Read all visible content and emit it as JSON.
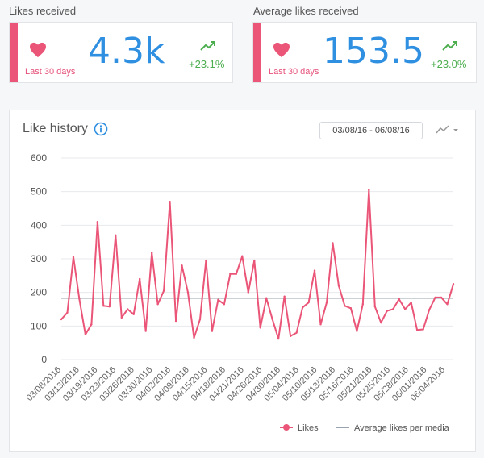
{
  "cards": [
    {
      "title": "Likes received",
      "value": "4.3k",
      "period": "Last 30 days",
      "change": "+23.1%"
    },
    {
      "title": "Average likes received",
      "value": "153.5",
      "period": "Last 30 days",
      "change": "+23.0%"
    }
  ],
  "chart_header": {
    "title": "Like history",
    "date_range": "03/08/16 - 06/08/16"
  },
  "icons": {
    "card_heart": "heart-icon",
    "trend": "trend-up-icon",
    "info": "info-icon",
    "chart_type": "line-chart-icon",
    "chart_type_menu": "chevron-down-icon"
  },
  "colors": {
    "likes": "#ea5578",
    "average": "#9aa3ad",
    "value_blue": "#2f8fe0",
    "trend_green": "#4cae4f"
  },
  "chart_data": {
    "type": "line",
    "title": "",
    "ylim": [
      0,
      600
    ],
    "yticks": [
      0,
      100,
      200,
      300,
      400,
      500,
      600
    ],
    "x_tick_labels": [
      "03/08/2016",
      "03/13/2016",
      "03/19/2016",
      "03/23/2016",
      "03/26/2016",
      "03/30/2016",
      "04/02/2016",
      "04/09/2016",
      "04/15/2016",
      "04/18/2016",
      "04/21/2016",
      "04/26/2016",
      "04/30/2016",
      "05/04/2016",
      "05/10/2016",
      "05/13/2016",
      "05/16/2016",
      "05/21/2016",
      "05/25/2016",
      "05/28/2016",
      "06/01/2016",
      "06/04/2016"
    ],
    "grid": "horizontal",
    "legend_position": "bottom-right",
    "series": [
      {
        "name": "Likes",
        "values": [
          120,
          140,
          305,
          180,
          75,
          105,
          410,
          160,
          158,
          370,
          125,
          150,
          135,
          240,
          85,
          318,
          165,
          205,
          470,
          115,
          280,
          200,
          65,
          120,
          295,
          85,
          178,
          165,
          255,
          255,
          308,
          200,
          295,
          95,
          183,
          120,
          62,
          188,
          70,
          80,
          155,
          170,
          265,
          105,
          170,
          347,
          220,
          160,
          153,
          85,
          165,
          505,
          158,
          110,
          145,
          150,
          180,
          150,
          170,
          88,
          90,
          148,
          185,
          185,
          165,
          225
        ],
        "style": "line-with-markers"
      },
      {
        "name": "Average likes per media",
        "values": [
          183,
          183
        ],
        "style": "flat-line"
      }
    ]
  }
}
